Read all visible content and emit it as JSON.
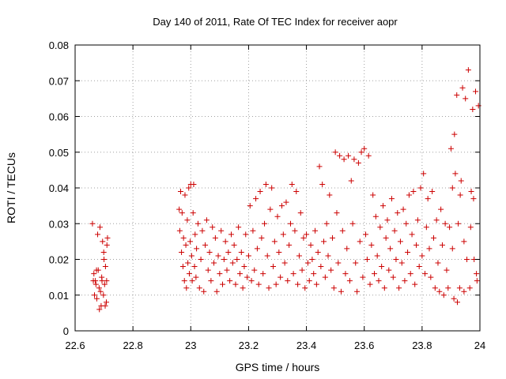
{
  "chart_data": {
    "type": "scatter",
    "title": "Day 140 of 2011, Rate Of TEC Index for receiver aopr",
    "xlabel": "GPS time / hours",
    "ylabel": "ROTI / TECUs",
    "xlim": [
      22.6,
      24
    ],
    "ylim": [
      0,
      0.08
    ],
    "xticks": [
      22.6,
      22.8,
      23,
      23.2,
      23.4,
      23.6,
      23.8,
      24
    ],
    "xtick_labels": [
      "22.6",
      "22.8",
      "23",
      "23.2",
      "23.4",
      "23.6",
      "23.8",
      "24"
    ],
    "yticks": [
      0,
      0.01,
      0.02,
      0.03,
      0.04,
      0.05,
      0.06,
      0.07,
      0.08
    ],
    "ytick_labels": [
      "0",
      "0.01",
      "0.02",
      "0.03",
      "0.04",
      "0.05",
      "0.06",
      "0.07",
      "0.08"
    ],
    "grid": true,
    "marker": "+",
    "color": "#cc0000",
    "series": [
      {
        "name": "ROTI",
        "points": [
          [
            22.66,
            0.03
          ],
          [
            22.665,
            0.016
          ],
          [
            22.67,
            0.014
          ],
          [
            22.672,
            0.013
          ],
          [
            22.675,
            0.009
          ],
          [
            22.678,
            0.027
          ],
          [
            22.68,
            0.017
          ],
          [
            22.683,
            0.012
          ],
          [
            22.686,
            0.029
          ],
          [
            22.688,
            0.011
          ],
          [
            22.69,
            0.007
          ],
          [
            22.693,
            0.014
          ],
          [
            22.695,
            0.025
          ],
          [
            22.698,
            0.01
          ],
          [
            22.7,
            0.02
          ],
          [
            22.702,
            0.013
          ],
          [
            22.705,
            0.018
          ],
          [
            22.708,
            0.008
          ],
          [
            22.71,
            0.024
          ],
          [
            22.712,
            0.026
          ],
          [
            22.663,
            0.014
          ],
          [
            22.667,
            0.01
          ],
          [
            22.674,
            0.017
          ],
          [
            22.684,
            0.006
          ],
          [
            22.692,
            0.015
          ],
          [
            22.699,
            0.022
          ],
          [
            22.704,
            0.007
          ],
          [
            22.709,
            0.014
          ],
          [
            22.96,
            0.034
          ],
          [
            22.962,
            0.028
          ],
          [
            22.965,
            0.039
          ],
          [
            22.968,
            0.022
          ],
          [
            22.97,
            0.033
          ],
          [
            22.973,
            0.018
          ],
          [
            22.975,
            0.026
          ],
          [
            22.978,
            0.014
          ],
          [
            22.98,
            0.038
          ],
          [
            22.983,
            0.024
          ],
          [
            22.985,
            0.012
          ],
          [
            22.988,
            0.031
          ],
          [
            22.99,
            0.019
          ],
          [
            22.993,
            0.04
          ],
          [
            22.995,
            0.016
          ],
          [
            22.998,
            0.025
          ],
          [
            23.0,
            0.041
          ],
          [
            23.003,
            0.021
          ],
          [
            23.005,
            0.014
          ],
          [
            23.008,
            0.033
          ],
          [
            23.01,
            0.041
          ],
          [
            23.013,
            0.018
          ],
          [
            23.015,
            0.027
          ],
          [
            23.018,
            0.015
          ],
          [
            23.02,
            0.023
          ],
          [
            23.025,
            0.03
          ],
          [
            23.03,
            0.012
          ],
          [
            23.035,
            0.02
          ],
          [
            23.04,
            0.028
          ],
          [
            23.045,
            0.011
          ],
          [
            23.05,
            0.024
          ],
          [
            23.055,
            0.031
          ],
          [
            23.06,
            0.017
          ],
          [
            23.065,
            0.022
          ],
          [
            23.07,
            0.014
          ],
          [
            23.075,
            0.029
          ],
          [
            23.08,
            0.019
          ],
          [
            23.085,
            0.026
          ],
          [
            23.09,
            0.011
          ],
          [
            23.095,
            0.021
          ],
          [
            23.1,
            0.016
          ],
          [
            23.105,
            0.028
          ],
          [
            23.11,
            0.013
          ],
          [
            23.115,
            0.02
          ],
          [
            23.12,
            0.025
          ],
          [
            23.125,
            0.017
          ],
          [
            23.13,
            0.022
          ],
          [
            23.135,
            0.014
          ],
          [
            23.14,
            0.027
          ],
          [
            23.145,
            0.019
          ],
          [
            23.15,
            0.024
          ],
          [
            23.155,
            0.013
          ],
          [
            23.16,
            0.02
          ],
          [
            23.165,
            0.029
          ],
          [
            23.17,
            0.016
          ],
          [
            23.175,
            0.022
          ],
          [
            23.18,
            0.012
          ],
          [
            23.185,
            0.018
          ],
          [
            23.19,
            0.027
          ],
          [
            23.195,
            0.015
          ],
          [
            23.2,
            0.021
          ],
          [
            23.205,
            0.035
          ],
          [
            23.21,
            0.014
          ],
          [
            23.215,
            0.028
          ],
          [
            23.22,
            0.017
          ],
          [
            23.225,
            0.037
          ],
          [
            23.23,
            0.023
          ],
          [
            23.235,
            0.013
          ],
          [
            23.24,
            0.039
          ],
          [
            23.245,
            0.026
          ],
          [
            23.25,
            0.016
          ],
          [
            23.255,
            0.03
          ],
          [
            23.26,
            0.041
          ],
          [
            23.265,
            0.021
          ],
          [
            23.27,
            0.012
          ],
          [
            23.275,
            0.034
          ],
          [
            23.28,
            0.04
          ],
          [
            23.285,
            0.018
          ],
          [
            23.29,
            0.025
          ],
          [
            23.295,
            0.013
          ],
          [
            23.3,
            0.032
          ],
          [
            23.305,
            0.022
          ],
          [
            23.31,
            0.015
          ],
          [
            23.315,
            0.035
          ],
          [
            23.32,
            0.027
          ],
          [
            23.325,
            0.019
          ],
          [
            23.33,
            0.036
          ],
          [
            23.335,
            0.014
          ],
          [
            23.34,
            0.024
          ],
          [
            23.345,
            0.03
          ],
          [
            23.35,
            0.041
          ],
          [
            23.355,
            0.016
          ],
          [
            23.36,
            0.028
          ],
          [
            23.365,
            0.039
          ],
          [
            23.37,
            0.013
          ],
          [
            23.375,
            0.021
          ],
          [
            23.38,
            0.033
          ],
          [
            23.385,
            0.017
          ],
          [
            23.39,
            0.026
          ],
          [
            23.395,
            0.012
          ],
          [
            23.4,
            0.027
          ],
          [
            23.405,
            0.019
          ],
          [
            23.41,
            0.014
          ],
          [
            23.415,
            0.024
          ],
          [
            23.42,
            0.02
          ],
          [
            23.425,
            0.016
          ],
          [
            23.43,
            0.028
          ],
          [
            23.435,
            0.013
          ],
          [
            23.44,
            0.022
          ],
          [
            23.445,
            0.046
          ],
          [
            23.45,
            0.018
          ],
          [
            23.455,
            0.041
          ],
          [
            23.46,
            0.025
          ],
          [
            23.465,
            0.015
          ],
          [
            23.47,
            0.03
          ],
          [
            23.475,
            0.021
          ],
          [
            23.48,
            0.038
          ],
          [
            23.485,
            0.017
          ],
          [
            23.49,
            0.026
          ],
          [
            23.495,
            0.012
          ],
          [
            23.5,
            0.05
          ],
          [
            23.505,
            0.033
          ],
          [
            23.51,
            0.019
          ],
          [
            23.515,
            0.049
          ],
          [
            23.52,
            0.011
          ],
          [
            23.525,
            0.028
          ],
          [
            23.53,
            0.048
          ],
          [
            23.535,
            0.016
          ],
          [
            23.54,
            0.023
          ],
          [
            23.545,
            0.049
          ],
          [
            23.55,
            0.014
          ],
          [
            23.555,
            0.042
          ],
          [
            23.56,
            0.03
          ],
          [
            23.565,
            0.048
          ],
          [
            23.57,
            0.019
          ],
          [
            23.575,
            0.011
          ],
          [
            23.58,
            0.047
          ],
          [
            23.585,
            0.025
          ],
          [
            23.59,
            0.05
          ],
          [
            23.595,
            0.015
          ],
          [
            23.6,
            0.051
          ],
          [
            23.605,
            0.027
          ],
          [
            23.61,
            0.02
          ],
          [
            23.615,
            0.049
          ],
          [
            23.62,
            0.013
          ],
          [
            23.625,
            0.024
          ],
          [
            23.63,
            0.038
          ],
          [
            23.635,
            0.016
          ],
          [
            23.64,
            0.032
          ],
          [
            23.645,
            0.021
          ],
          [
            23.65,
            0.014
          ],
          [
            23.655,
            0.029
          ],
          [
            23.66,
            0.018
          ],
          [
            23.665,
            0.035
          ],
          [
            23.67,
            0.012
          ],
          [
            23.675,
            0.026
          ],
          [
            23.68,
            0.031
          ],
          [
            23.685,
            0.017
          ],
          [
            23.69,
            0.023
          ],
          [
            23.695,
            0.037
          ],
          [
            23.7,
            0.015
          ],
          [
            23.705,
            0.028
          ],
          [
            23.71,
            0.02
          ],
          [
            23.715,
            0.033
          ],
          [
            23.72,
            0.012
          ],
          [
            23.725,
            0.025
          ],
          [
            23.73,
            0.019
          ],
          [
            23.735,
            0.034
          ],
          [
            23.74,
            0.014
          ],
          [
            23.745,
            0.03
          ],
          [
            23.75,
            0.022
          ],
          [
            23.755,
            0.038
          ],
          [
            23.76,
            0.016
          ],
          [
            23.765,
            0.027
          ],
          [
            23.77,
            0.039
          ],
          [
            23.775,
            0.013
          ],
          [
            23.78,
            0.024
          ],
          [
            23.785,
            0.031
          ],
          [
            23.79,
            0.018
          ],
          [
            23.795,
            0.04
          ],
          [
            23.8,
            0.021
          ],
          [
            23.805,
            0.044
          ],
          [
            23.81,
            0.016
          ],
          [
            23.815,
            0.029
          ],
          [
            23.82,
            0.037
          ],
          [
            23.825,
            0.023
          ],
          [
            23.83,
            0.015
          ],
          [
            23.835,
            0.039
          ],
          [
            23.84,
            0.026
          ],
          [
            23.845,
            0.012
          ],
          [
            23.85,
            0.031
          ],
          [
            23.855,
            0.019
          ],
          [
            23.86,
            0.011
          ],
          [
            23.865,
            0.034
          ],
          [
            23.87,
            0.024
          ],
          [
            23.875,
            0.01
          ],
          [
            23.88,
            0.03
          ],
          [
            23.885,
            0.017
          ],
          [
            23.89,
            0.012
          ],
          [
            23.895,
            0.029
          ],
          [
            23.9,
            0.051
          ],
          [
            23.905,
            0.023
          ],
          [
            23.91,
            0.009
          ],
          [
            23.915,
            0.044
          ],
          [
            23.92,
            0.066
          ],
          [
            23.925,
            0.03
          ],
          [
            23.93,
            0.012
          ],
          [
            23.935,
            0.042
          ],
          [
            23.94,
            0.068
          ],
          [
            23.945,
            0.025
          ],
          [
            23.95,
            0.065
          ],
          [
            23.955,
            0.02
          ],
          [
            23.96,
            0.073
          ],
          [
            23.965,
            0.012
          ],
          [
            23.97,
            0.039
          ],
          [
            23.975,
            0.062
          ],
          [
            23.98,
            0.02
          ],
          [
            23.985,
            0.067
          ],
          [
            23.99,
            0.014
          ],
          [
            23.995,
            0.063
          ],
          [
            23.912,
            0.055
          ],
          [
            23.922,
            0.008
          ],
          [
            23.932,
            0.038
          ],
          [
            23.968,
            0.029
          ],
          [
            23.978,
            0.037
          ],
          [
            23.988,
            0.016
          ],
          [
            23.905,
            0.04
          ],
          [
            23.945,
            0.011
          ]
        ]
      }
    ]
  }
}
